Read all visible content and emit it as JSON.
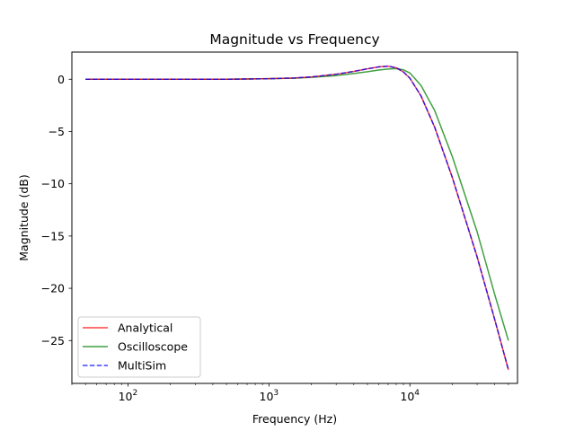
{
  "chart_data": {
    "type": "line",
    "title": "Magnitude vs Frequency",
    "xlabel": "Frequency (Hz)",
    "ylabel": "Magnitude (dB)",
    "xscale": "log",
    "xlim": [
      40,
      58000
    ],
    "ylim": [
      -29.1,
      2.6
    ],
    "x_ticks": [
      {
        "value": 100,
        "base": "10",
        "exp": "2"
      },
      {
        "value": 1000,
        "base": "10",
        "exp": "3"
      },
      {
        "value": 10000,
        "base": "10",
        "exp": "4"
      }
    ],
    "y_ticks": [
      0,
      -5,
      -10,
      -15,
      -20,
      -25
    ],
    "grid": false,
    "legend_position": "lower-left",
    "series": [
      {
        "name": "Analytical",
        "color": "#ff0000",
        "style": "solid",
        "x": [
          50,
          100,
          200,
          500,
          1000,
          1500,
          2000,
          3000,
          4000,
          5000,
          6000,
          7000,
          8000,
          9000,
          10000,
          12000,
          15000,
          20000,
          30000,
          40000,
          50000
        ],
        "y": [
          0.0,
          0.0,
          0.0,
          0.0,
          0.05,
          0.12,
          0.22,
          0.48,
          0.75,
          1.0,
          1.18,
          1.25,
          1.1,
          0.7,
          0.1,
          -1.6,
          -4.6,
          -9.4,
          -17.0,
          -23.0,
          -27.8
        ]
      },
      {
        "name": "Oscilloscope",
        "color": "#008000",
        "style": "solid",
        "x": [
          50,
          100,
          200,
          500,
          1000,
          1500,
          2000,
          3000,
          4000,
          5000,
          6000,
          7000,
          8000,
          9000,
          10000,
          12000,
          15000,
          20000,
          30000,
          40000,
          50000
        ],
        "y": [
          0.0,
          0.0,
          0.0,
          0.0,
          0.05,
          0.1,
          0.18,
          0.35,
          0.55,
          0.72,
          0.88,
          0.98,
          1.02,
          0.9,
          0.6,
          -0.6,
          -3.0,
          -7.4,
          -14.6,
          -20.6,
          -25.0
        ]
      },
      {
        "name": "MultiSim",
        "color": "#0000ff",
        "style": "dashed",
        "x": [
          50,
          100,
          200,
          500,
          1000,
          1500,
          2000,
          3000,
          4000,
          5000,
          6000,
          7000,
          8000,
          9000,
          10000,
          12000,
          15000,
          20000,
          30000,
          40000,
          50000
        ],
        "y": [
          0.0,
          0.0,
          0.0,
          0.0,
          0.05,
          0.12,
          0.22,
          0.48,
          0.75,
          1.0,
          1.18,
          1.25,
          1.1,
          0.7,
          0.1,
          -1.6,
          -4.6,
          -9.4,
          -17.0,
          -23.0,
          -27.8
        ]
      }
    ]
  }
}
